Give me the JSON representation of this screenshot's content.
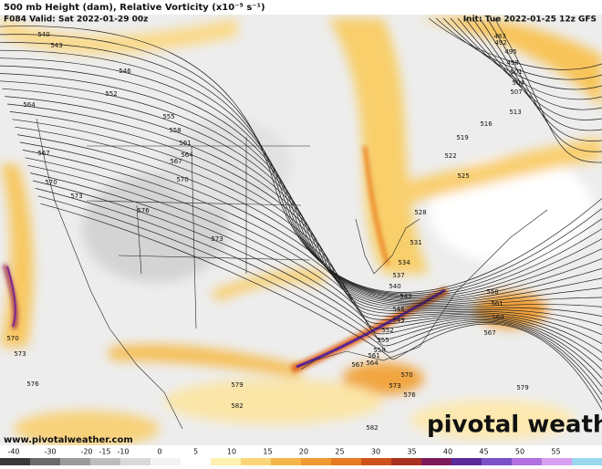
{
  "header": {
    "title": "500 mb Height (dam), Relative Vorticity (x10⁻⁵ s⁻¹)",
    "valid": "F084 Valid: Sat 2022-01-29 00z",
    "init": "Init: Tue 2022-01-25 12z GFS"
  },
  "contour_labels": [
    "540",
    "543",
    "546",
    "552",
    "555",
    "558",
    "561",
    "564",
    "567",
    "570",
    "573",
    "576",
    "573",
    "570",
    "570",
    "573",
    "576",
    "579",
    "582",
    "582",
    "579",
    "564",
    "567",
    "483",
    "492",
    "495",
    "498",
    "501",
    "504",
    "507",
    "513",
    "516",
    "519",
    "522",
    "525",
    "528",
    "531",
    "534",
    "537",
    "540",
    "543",
    "546",
    "549",
    "552",
    "555",
    "558",
    "561",
    "564",
    "567",
    "570",
    "573",
    "576",
    "558",
    "561",
    "564",
    "567"
  ],
  "watermark": {
    "url": "www.pivotalweather.com",
    "brand": "pivotal weather"
  },
  "colorbar": {
    "ticks": [
      -40,
      -30,
      -20,
      -15,
      -10,
      0,
      5,
      10,
      15,
      20,
      25,
      30,
      35,
      40,
      45,
      50,
      55
    ],
    "colors": [
      "#3a3a3a",
      "#6b6b6b",
      "#9a9a9a",
      "#bdbdbd",
      "#d9d9d9",
      "#f2f2f2",
      "#ffffff",
      "#fdf0b0",
      "#fbd678",
      "#f6b64a",
      "#ef9a2e",
      "#e67b22",
      "#d0501c",
      "#a8301e",
      "#7d1a5c",
      "#5b2a9c",
      "#7a50c8",
      "#b070e0",
      "#d8a0f0",
      "#9ad8f0"
    ]
  }
}
